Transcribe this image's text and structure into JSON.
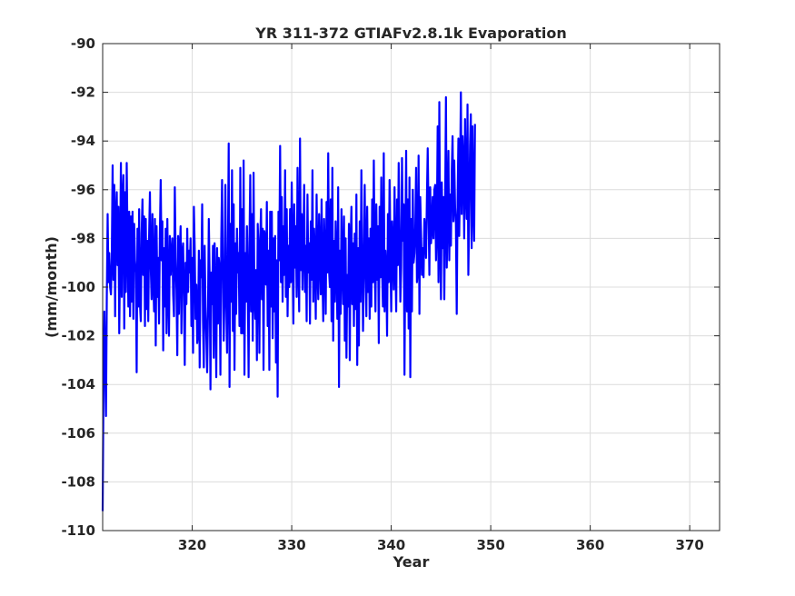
{
  "chart_data": {
    "type": "line",
    "title": "YR 311-372 GTIAFv2.8.1k Evaporation",
    "xlabel": "Year",
    "ylabel": "(mm/month)",
    "xlim": [
      311,
      373
    ],
    "ylim": [
      -110,
      -90
    ],
    "xticks": [
      320,
      330,
      340,
      350,
      360,
      370
    ],
    "yticks": [
      -110,
      -108,
      -106,
      -104,
      -102,
      -100,
      -98,
      -96,
      -94,
      -92,
      -90
    ],
    "grid": true,
    "series": [
      {
        "color": "#0000ff",
        "x_start": 311.0,
        "x_step": 0.0833333,
        "values": [
          -109.2,
          -104.0,
          -101.0,
          -103.2,
          -105.3,
          -100.4,
          -97.0,
          -99.8,
          -98.6,
          -100.0,
          -100.3,
          -98.8,
          -95.0,
          -99.7,
          -95.8,
          -101.2,
          -97.0,
          -96.1,
          -99.1,
          -96.7,
          -101.9,
          -98.8,
          -94.9,
          -100.4,
          -96.3,
          -95.4,
          -101.7,
          -96.1,
          -100.2,
          -94.9,
          -98.1,
          -100.8,
          -96.9,
          -101.2,
          -97.1,
          -100.6,
          -96.9,
          -101.3,
          -97.4,
          -98.9,
          -99.4,
          -103.5,
          -97.6,
          -100.8,
          -96.8,
          -100.7,
          -101.4,
          -97.8,
          -96.4,
          -99.5,
          -97.1,
          -101.6,
          -97.2,
          -100.9,
          -98.1,
          -101.4,
          -97.9,
          -96.1,
          -99.2,
          -100.5,
          -97.0,
          -99.7,
          -101.0,
          -97.2,
          -102.4,
          -97.5,
          -100.4,
          -98.8,
          -101.5,
          -97.8,
          -95.6,
          -98.9,
          -97.3,
          -102.6,
          -98.4,
          -100.8,
          -97.6,
          -101.9,
          -97.2,
          -100.1,
          -102.0,
          -97.9,
          -99.5,
          -98.6,
          -98.0,
          -100.3,
          -101.2,
          -95.9,
          -98.8,
          -100.1,
          -102.8,
          -97.9,
          -101.1,
          -98.5,
          -97.5,
          -101.9,
          -98.6,
          -98.2,
          -100.4,
          -103.2,
          -99.0,
          -100.7,
          -97.6,
          -100.2,
          -98.5,
          -99.4,
          -98.0,
          -101.6,
          -98.8,
          -102.7,
          -96.7,
          -98.4,
          -101.3,
          -99.9,
          -102.3,
          -101.9,
          -98.5,
          -103.3,
          -98.9,
          -99.6,
          -96.6,
          -101.4,
          -103.3,
          -98.3,
          -100.8,
          -102.0,
          -103.5,
          -101.1,
          -97.2,
          -99.5,
          -104.2,
          -99.4,
          -100.7,
          -98.3,
          -102.9,
          -98.2,
          -100.2,
          -103.7,
          -98.4,
          -101.5,
          -98.8,
          -99.3,
          -103.6,
          -98.1,
          -95.6,
          -99.3,
          -102.2,
          -100.3,
          -95.8,
          -100.5,
          -102.7,
          -98.8,
          -94.1,
          -104.1,
          -97.4,
          -100.6,
          -95.2,
          -101.8,
          -96.6,
          -103.4,
          -98.2,
          -101.1,
          -97.6,
          -99.4,
          -98.6,
          -101.6,
          -95.1,
          -101.9,
          -96.8,
          -101.9,
          -94.8,
          -103.6,
          -98.6,
          -100.6,
          -97.5,
          -99.9,
          -103.7,
          -98.2,
          -95.4,
          -101.0,
          -97.0,
          -102.2,
          -95.3,
          -100.4,
          -101.3,
          -99.3,
          -103.0,
          -97.4,
          -98.6,
          -102.7,
          -98.0,
          -96.8,
          -100.5,
          -97.6,
          -103.4,
          -97.7,
          -98.1,
          -99.9,
          -96.5,
          -101.6,
          -98.5,
          -103.4,
          -96.9,
          -100.8,
          -96.9,
          -102.1,
          -98.0,
          -101.0,
          -97.9,
          -103.1,
          -98.9,
          -104.5,
          -96.9,
          -98.9,
          -94.2,
          -99.8,
          -96.3,
          -100.6,
          -97.5,
          -99.5,
          -95.2,
          -100.4,
          -96.8,
          -101.2,
          -98.3,
          -100.0,
          -96.8,
          -99.8,
          -95.7,
          -98.4,
          -101.5,
          -96.6,
          -99.2,
          -97.5,
          -100.4,
          -95.1,
          -98.9,
          -101.0,
          -93.9,
          -99.3,
          -97.0,
          -100.1,
          -98.2,
          -95.8,
          -100.2,
          -98.3,
          -101.4,
          -96.2,
          -99.4,
          -98.2,
          -101.5,
          -97.3,
          -99.7,
          -95.2,
          -100.6,
          -97.6,
          -98.8,
          -101.3,
          -96.2,
          -99.1,
          -100.5,
          -97.0,
          -98.7,
          -100.3,
          -96.4,
          -99.5,
          -101.4,
          -97.2,
          -98.6,
          -101.1,
          -96.5,
          -99.4,
          -94.5,
          -99.3,
          -100.0,
          -96.4,
          -101.4,
          -95.1,
          -102.2,
          -98.1,
          -100.6,
          -97.3,
          -99.1,
          -101.3,
          -95.9,
          -104.1,
          -98.5,
          -101.1,
          -96.8,
          -99.1,
          -100.7,
          -97.1,
          -102.2,
          -98.0,
          -102.9,
          -99.5,
          -100.8,
          -97.4,
          -103.0,
          -98.3,
          -96.7,
          -100.7,
          -98.2,
          -101.6,
          -97.8,
          -100.9,
          -96.2,
          -103.2,
          -98.4,
          -102.4,
          -97.3,
          -100.6,
          -95.2,
          -98.6,
          -101.8,
          -99.4,
          -95.8,
          -98.9,
          -101.2,
          -96.7,
          -100.2,
          -98.0,
          -101.3,
          -97.6,
          -100.8,
          -96.4,
          -99.8,
          -94.8,
          -99.0,
          -101.0,
          -96.6,
          -99.7,
          -97.5,
          -102.3,
          -96.7,
          -99.6,
          -95.5,
          -99.3,
          -100.8,
          -94.5,
          -101.0,
          -98.5,
          -99.4,
          -102.0,
          -97.0,
          -99.8,
          -95.6,
          -98.7,
          -101.0,
          -97.3,
          -98.5,
          -100.1,
          -95.9,
          -98.9,
          -101.0,
          -96.4,
          -99.1,
          -94.9,
          -97.9,
          -100.6,
          -99.2,
          -94.7,
          -98.1,
          -96.6,
          -103.6,
          -98.4,
          -94.4,
          -101.0,
          -96.4,
          -101.7,
          -95.5,
          -103.7,
          -97.2,
          -101.0,
          -96.0,
          -99.0,
          -98.6,
          -97.6,
          -95.1,
          -99.8,
          -99.3,
          -94.6,
          -101.1,
          -96.3,
          -97.8,
          -99.5,
          -98.4,
          -99.6,
          -97.2,
          -97.9,
          -98.8,
          -96.4,
          -94.3,
          -96.9,
          -99.5,
          -95.9,
          -98.2,
          -97.6,
          -96.3,
          -98.0,
          -96.0,
          -95.8,
          -98.9,
          -97.5,
          -93.4,
          -99.8,
          -92.4,
          -98.0,
          -100.5,
          -95.7,
          -98.4,
          -96.3,
          -100.5,
          -96.6,
          -92.2,
          -99.2,
          -96.8,
          -94.4,
          -98.9,
          -96.2,
          -98.3,
          -95.2,
          -93.8,
          -97.3,
          -94.8,
          -96.7,
          -97.4,
          -101.1,
          -96.5,
          -93.9,
          -97.9,
          -95.4,
          -92.0,
          -97.0,
          -93.8,
          -94.9,
          -98.0,
          -93.1,
          -95.9,
          -97.2,
          -92.5,
          -99.5,
          -97.0,
          -94.2,
          -92.9,
          -98.4,
          -93.4,
          -96.6,
          -98.1,
          -93.3
        ]
      }
    ]
  }
}
